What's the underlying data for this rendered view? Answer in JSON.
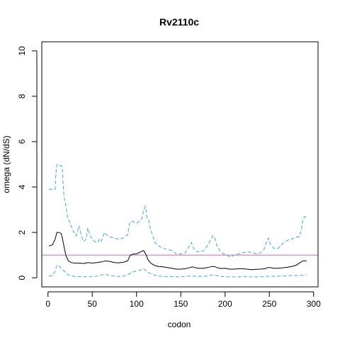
{
  "chart_data": {
    "type": "line",
    "title": "Rv2110c",
    "xlabel": "codon",
    "ylabel": "omega (dN/dS)",
    "xlim": [
      -7,
      305
    ],
    "ylim": [
      -0.4,
      10.4
    ],
    "x_ticks": [
      "0",
      "50",
      "100",
      "150",
      "200",
      "250",
      "300"
    ],
    "y_ticks": [
      "0",
      "2",
      "4",
      "6",
      "8",
      "10"
    ],
    "reference_line": {
      "y": 1,
      "color": "#cc66cc"
    },
    "series": [
      {
        "role": "upper",
        "color": "#33aadd",
        "style": "dashed",
        "points": [
          [
            1,
            3.9
          ],
          [
            8,
            3.9
          ],
          [
            9,
            4.6
          ],
          [
            10,
            5.0
          ],
          [
            12,
            4.95
          ],
          [
            14,
            4.95
          ],
          [
            16,
            4.9
          ],
          [
            17,
            4.2
          ],
          [
            18,
            3.6
          ],
          [
            20,
            3.2
          ],
          [
            22,
            2.7
          ],
          [
            25,
            2.4
          ],
          [
            28,
            2.1
          ],
          [
            32,
            1.85
          ],
          [
            35,
            2.3
          ],
          [
            38,
            1.8
          ],
          [
            40,
            1.6
          ],
          [
            43,
            1.7
          ],
          [
            45,
            2.2
          ],
          [
            47,
            1.9
          ],
          [
            50,
            1.7
          ],
          [
            53,
            1.6
          ],
          [
            56,
            1.55
          ],
          [
            58,
            1.7
          ],
          [
            60,
            1.6
          ],
          [
            62,
            1.8
          ],
          [
            64,
            2.0
          ],
          [
            66,
            1.9
          ],
          [
            70,
            1.8
          ],
          [
            75,
            1.75
          ],
          [
            80,
            1.7
          ],
          [
            85,
            1.75
          ],
          [
            90,
            1.9
          ],
          [
            92,
            2.4
          ],
          [
            95,
            2.5
          ],
          [
            100,
            2.4
          ],
          [
            103,
            2.5
          ],
          [
            106,
            2.6
          ],
          [
            108,
            3.0
          ],
          [
            110,
            3.15
          ],
          [
            112,
            2.6
          ],
          [
            114,
            2.5
          ],
          [
            116,
            2.1
          ],
          [
            118,
            1.9
          ],
          [
            120,
            1.6
          ],
          [
            125,
            1.4
          ],
          [
            130,
            1.3
          ],
          [
            135,
            1.25
          ],
          [
            140,
            1.2
          ],
          [
            145,
            1.05
          ],
          [
            150,
            1.05
          ],
          [
            155,
            1.1
          ],
          [
            158,
            1.3
          ],
          [
            162,
            1.55
          ],
          [
            165,
            1.25
          ],
          [
            168,
            1.15
          ],
          [
            172,
            1.15
          ],
          [
            176,
            1.2
          ],
          [
            180,
            1.4
          ],
          [
            184,
            1.7
          ],
          [
            186,
            1.85
          ],
          [
            188,
            1.8
          ],
          [
            190,
            1.5
          ],
          [
            194,
            1.2
          ],
          [
            198,
            1.05
          ],
          [
            202,
            1.0
          ],
          [
            206,
            0.9
          ],
          [
            210,
            1.0
          ],
          [
            215,
            1.05
          ],
          [
            220,
            1.1
          ],
          [
            225,
            1.15
          ],
          [
            230,
            1.1
          ],
          [
            236,
            1.05
          ],
          [
            240,
            1.1
          ],
          [
            244,
            1.25
          ],
          [
            247,
            1.6
          ],
          [
            249,
            1.75
          ],
          [
            251,
            1.5
          ],
          [
            255,
            1.3
          ],
          [
            260,
            1.3
          ],
          [
            265,
            1.5
          ],
          [
            270,
            1.65
          ],
          [
            275,
            1.7
          ],
          [
            280,
            1.8
          ],
          [
            284,
            1.8
          ],
          [
            286,
            2.1
          ],
          [
            288,
            2.6
          ],
          [
            290,
            2.7
          ],
          [
            292,
            2.65
          ]
        ]
      },
      {
        "role": "estimate",
        "color": "#000000",
        "style": "solid",
        "points": [
          [
            1,
            1.4
          ],
          [
            5,
            1.45
          ],
          [
            8,
            1.7
          ],
          [
            10,
            2.0
          ],
          [
            12,
            2.0
          ],
          [
            15,
            1.95
          ],
          [
            17,
            1.6
          ],
          [
            20,
            1.0
          ],
          [
            23,
            0.75
          ],
          [
            26,
            0.67
          ],
          [
            30,
            0.65
          ],
          [
            35,
            0.65
          ],
          [
            40,
            0.63
          ],
          [
            45,
            0.67
          ],
          [
            50,
            0.65
          ],
          [
            55,
            0.67
          ],
          [
            60,
            0.7
          ],
          [
            65,
            0.75
          ],
          [
            70,
            0.72
          ],
          [
            75,
            0.67
          ],
          [
            80,
            0.66
          ],
          [
            85,
            0.68
          ],
          [
            90,
            0.75
          ],
          [
            93,
            1.0
          ],
          [
            97,
            1.05
          ],
          [
            100,
            1.05
          ],
          [
            105,
            1.15
          ],
          [
            108,
            1.2
          ],
          [
            111,
            1.0
          ],
          [
            113,
            0.8
          ],
          [
            116,
            0.65
          ],
          [
            120,
            0.55
          ],
          [
            125,
            0.5
          ],
          [
            130,
            0.48
          ],
          [
            135,
            0.45
          ],
          [
            140,
            0.42
          ],
          [
            145,
            0.38
          ],
          [
            150,
            0.38
          ],
          [
            155,
            0.4
          ],
          [
            160,
            0.45
          ],
          [
            163,
            0.48
          ],
          [
            166,
            0.45
          ],
          [
            170,
            0.42
          ],
          [
            175,
            0.42
          ],
          [
            180,
            0.45
          ],
          [
            185,
            0.5
          ],
          [
            188,
            0.5
          ],
          [
            192,
            0.43
          ],
          [
            196,
            0.41
          ],
          [
            200,
            0.42
          ],
          [
            205,
            0.38
          ],
          [
            210,
            0.38
          ],
          [
            215,
            0.4
          ],
          [
            220,
            0.4
          ],
          [
            225,
            0.38
          ],
          [
            230,
            0.36
          ],
          [
            235,
            0.37
          ],
          [
            240,
            0.38
          ],
          [
            245,
            0.4
          ],
          [
            248,
            0.45
          ],
          [
            251,
            0.45
          ],
          [
            255,
            0.42
          ],
          [
            260,
            0.42
          ],
          [
            265,
            0.44
          ],
          [
            270,
            0.46
          ],
          [
            275,
            0.5
          ],
          [
            280,
            0.55
          ],
          [
            285,
            0.68
          ],
          [
            288,
            0.75
          ],
          [
            292,
            0.75
          ]
        ]
      },
      {
        "role": "lower",
        "color": "#33aadd",
        "style": "dashed",
        "points": [
          [
            1,
            0.08
          ],
          [
            5,
            0.1
          ],
          [
            8,
            0.3
          ],
          [
            10,
            0.55
          ],
          [
            12,
            0.55
          ],
          [
            15,
            0.4
          ],
          [
            18,
            0.3
          ],
          [
            22,
            0.15
          ],
          [
            26,
            0.08
          ],
          [
            30,
            0.06
          ],
          [
            35,
            0.05
          ],
          [
            40,
            0.05
          ],
          [
            45,
            0.05
          ],
          [
            50,
            0.05
          ],
          [
            55,
            0.07
          ],
          [
            60,
            0.12
          ],
          [
            65,
            0.15
          ],
          [
            70,
            0.1
          ],
          [
            75,
            0.07
          ],
          [
            80,
            0.06
          ],
          [
            85,
            0.07
          ],
          [
            90,
            0.12
          ],
          [
            95,
            0.25
          ],
          [
            100,
            0.3
          ],
          [
            105,
            0.35
          ],
          [
            108,
            0.4
          ],
          [
            111,
            0.3
          ],
          [
            115,
            0.2
          ],
          [
            120,
            0.12
          ],
          [
            125,
            0.08
          ],
          [
            130,
            0.06
          ],
          [
            135,
            0.05
          ],
          [
            140,
            0.05
          ],
          [
            145,
            0.04
          ],
          [
            150,
            0.04
          ],
          [
            155,
            0.06
          ],
          [
            160,
            0.08
          ],
          [
            165,
            0.07
          ],
          [
            170,
            0.06
          ],
          [
            175,
            0.06
          ],
          [
            180,
            0.08
          ],
          [
            185,
            0.12
          ],
          [
            190,
            0.1
          ],
          [
            195,
            0.06
          ],
          [
            200,
            0.05
          ],
          [
            205,
            0.04
          ],
          [
            210,
            0.04
          ],
          [
            215,
            0.04
          ],
          [
            220,
            0.05
          ],
          [
            225,
            0.05
          ],
          [
            230,
            0.04
          ],
          [
            235,
            0.04
          ],
          [
            240,
            0.04
          ],
          [
            245,
            0.05
          ],
          [
            250,
            0.07
          ],
          [
            255,
            0.06
          ],
          [
            260,
            0.07
          ],
          [
            265,
            0.08
          ],
          [
            270,
            0.09
          ],
          [
            275,
            0.1
          ],
          [
            280,
            0.1
          ],
          [
            285,
            0.1
          ],
          [
            290,
            0.12
          ],
          [
            292,
            0.12
          ]
        ]
      }
    ]
  }
}
